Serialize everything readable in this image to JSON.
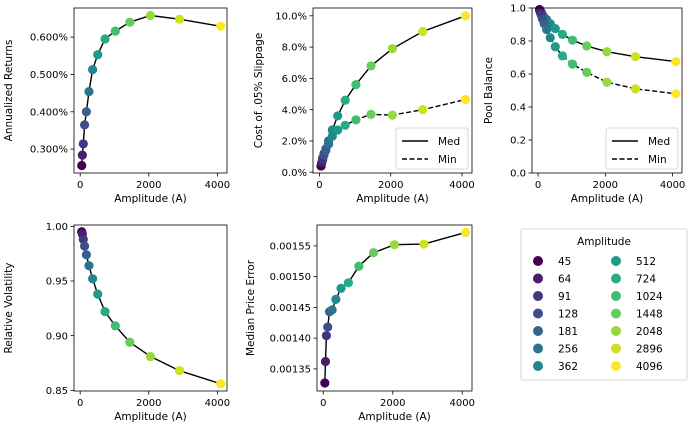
{
  "chart_data": [
    {
      "id": "returns",
      "type": "line",
      "ylabel": "Annualized Returns",
      "xlabel": "Amplitude (A)",
      "xlim": [
        -180,
        4280
      ],
      "ylim": [
        0.236,
        0.678
      ],
      "xticks": [
        0,
        2000,
        4000
      ],
      "xtick_labels": [
        "0",
        "2000",
        "4000"
      ],
      "yticks": [
        0.3,
        0.4,
        0.5,
        0.6
      ],
      "ytick_labels": [
        "0.300%",
        "0.400%",
        "0.500%",
        "0.600%"
      ],
      "x": [
        45,
        64,
        91,
        128,
        181,
        256,
        362,
        512,
        724,
        1024,
        1448,
        2048,
        2896,
        4096
      ],
      "series": [
        {
          "name": "Returns",
          "style": "solid",
          "values": [
            0.256,
            0.284,
            0.314,
            0.365,
            0.4,
            0.454,
            0.513,
            0.553,
            0.595,
            0.616,
            0.64,
            0.658,
            0.648,
            0.629
          ]
        }
      ]
    },
    {
      "id": "slippage",
      "type": "line",
      "ylabel": "Cost of .05% Slippage",
      "xlabel": "Amplitude (A)",
      "xlim": [
        -180,
        4280
      ],
      "ylim": [
        -0.05,
        10.5
      ],
      "xticks": [
        0,
        2000,
        4000
      ],
      "xtick_labels": [
        "0",
        "2000",
        "4000"
      ],
      "yticks": [
        0,
        2,
        4,
        6,
        8,
        10
      ],
      "ytick_labels": [
        "0.0%",
        "2.0%",
        "4.0%",
        "6.0%",
        "8.0%",
        "10.0%"
      ],
      "x": [
        45,
        64,
        91,
        128,
        181,
        256,
        362,
        512,
        724,
        1024,
        1448,
        2048,
        2896,
        4096
      ],
      "series": [
        {
          "name": "Med",
          "style": "solid",
          "values": [
            0.4,
            0.6,
            0.9,
            1.2,
            1.5,
            2.0,
            2.7,
            3.6,
            4.6,
            5.6,
            6.8,
            7.9,
            9.0,
            10.0
          ]
        },
        {
          "name": "Min",
          "style": "dashed",
          "values": [
            0.4,
            0.6,
            0.8,
            1.1,
            1.4,
            1.8,
            2.3,
            2.7,
            3.0,
            3.35,
            3.7,
            3.65,
            4.0,
            4.65
          ]
        }
      ],
      "legend": {
        "placement": "lower-right",
        "entries": [
          "Med",
          "Min"
        ]
      }
    },
    {
      "id": "pool",
      "type": "line",
      "ylabel": "Pool Balance",
      "xlabel": "Amplitude (A)",
      "xlim": [
        -180,
        4280
      ],
      "ylim": [
        0,
        1
      ],
      "xticks": [
        0,
        2000,
        4000
      ],
      "xtick_labels": [
        "0",
        "2000",
        "4000"
      ],
      "yticks": [
        0,
        0.2,
        0.4,
        0.6,
        0.8,
        1.0
      ],
      "ytick_labels": [
        "0.0",
        "0.2",
        "0.4",
        "0.6",
        "0.8",
        "1.0"
      ],
      "x": [
        45,
        64,
        91,
        128,
        181,
        256,
        362,
        512,
        724,
        1024,
        1448,
        2048,
        2896,
        4096
      ],
      "series": [
        {
          "name": "Med",
          "style": "solid",
          "values": [
            0.99,
            0.985,
            0.975,
            0.96,
            0.945,
            0.93,
            0.905,
            0.875,
            0.84,
            0.805,
            0.77,
            0.735,
            0.705,
            0.675
          ]
        },
        {
          "name": "Min",
          "style": "dashed",
          "values": [
            0.99,
            0.975,
            0.96,
            0.935,
            0.905,
            0.87,
            0.82,
            0.765,
            0.71,
            0.66,
            0.61,
            0.55,
            0.51,
            0.48
          ]
        }
      ],
      "legend": {
        "placement": "lower-right",
        "entries": [
          "Med",
          "Min"
        ]
      }
    },
    {
      "id": "volatility",
      "type": "line",
      "ylabel": "Relative Volatility",
      "xlabel": "Amplitude (A)",
      "xlim": [
        -180,
        4280
      ],
      "ylim": [
        0.8494,
        1.0012
      ],
      "xticks": [
        0,
        2000,
        4000
      ],
      "xtick_labels": [
        "0",
        "2000",
        "4000"
      ],
      "yticks": [
        0.85,
        0.9,
        0.95,
        1.0
      ],
      "ytick_labels": [
        "0.85",
        "0.90",
        "0.95",
        "1.00"
      ],
      "x": [
        45,
        64,
        91,
        128,
        181,
        256,
        362,
        512,
        724,
        1024,
        1448,
        2048,
        2896,
        4096
      ],
      "series": [
        {
          "name": "Volatility",
          "style": "solid",
          "values": [
            0.995,
            0.993,
            0.988,
            0.982,
            0.974,
            0.964,
            0.952,
            0.938,
            0.922,
            0.909,
            0.894,
            0.881,
            0.868,
            0.856
          ]
        }
      ]
    },
    {
      "id": "price-error",
      "type": "line",
      "ylabel": "Median Price Error",
      "xlabel": "Amplitude (A)",
      "xlim": [
        -180,
        4280
      ],
      "ylim": [
        0.001314,
        0.001584
      ],
      "xticks": [
        0,
        2000,
        4000
      ],
      "xtick_labels": [
        "0",
        "2000",
        "4000"
      ],
      "yticks": [
        0.00135,
        0.0014,
        0.00145,
        0.0015,
        0.00155
      ],
      "ytick_labels": [
        "0.00135",
        "0.00140",
        "0.00145",
        "0.00150",
        "0.00155"
      ],
      "x": [
        45,
        64,
        91,
        128,
        181,
        256,
        362,
        512,
        724,
        1024,
        1448,
        2048,
        2896,
        4096
      ],
      "series": [
        {
          "name": "Price Error",
          "style": "solid",
          "values": [
            0.001327,
            0.001362,
            0.001404,
            0.001418,
            0.001443,
            0.001446,
            0.001463,
            0.001481,
            0.00149,
            0.001517,
            0.001539,
            0.001552,
            0.001553,
            0.001572
          ]
        }
      ]
    }
  ],
  "amplitude_legend": {
    "title": "Amplitude",
    "entries": [
      "45",
      "64",
      "91",
      "128",
      "181",
      "256",
      "362",
      "512",
      "724",
      "1024",
      "1448",
      "2048",
      "2896",
      "4096"
    ],
    "colors": [
      "#440154",
      "#481c6e",
      "#453581",
      "#3d4d8a",
      "#34618d",
      "#2b748e",
      "#24878e",
      "#1f998a",
      "#25ac82",
      "#40bd72",
      "#67cc5c",
      "#98d83e",
      "#cde11d",
      "#fde725"
    ]
  }
}
